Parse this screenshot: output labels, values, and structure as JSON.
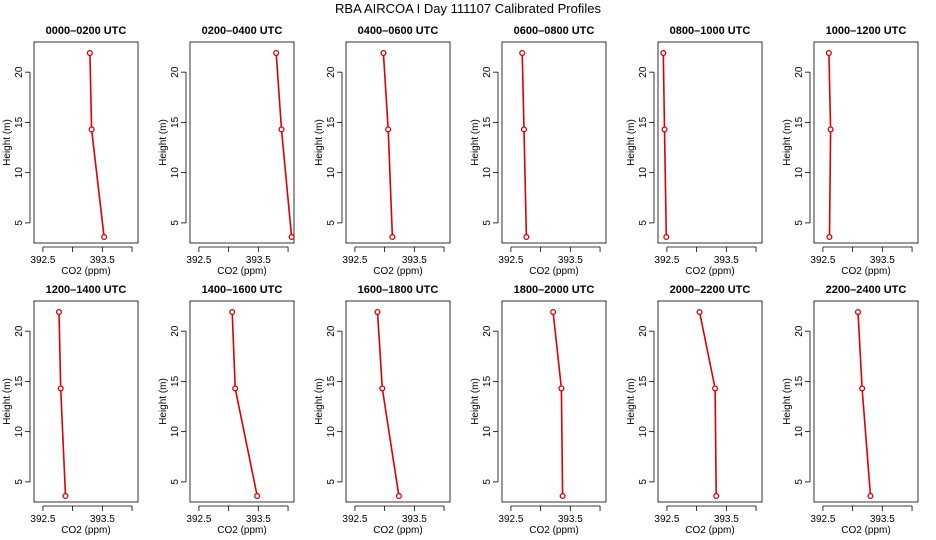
{
  "title": "RBA AIRCOA I  Day 111107  Calibrated Profiles",
  "colors": {
    "series": "#dd0000",
    "axis": "#000000"
  },
  "chart_data": {
    "type": "line",
    "xlabel": "CO2 (ppm)",
    "ylabel": "Height (m)",
    "xlim": [
      392.35,
      394.1
    ],
    "ylim": [
      3,
      23
    ],
    "x_ticks": [
      392.5,
      393.5
    ],
    "y_ticks": [
      5,
      10,
      15,
      20
    ],
    "heights": [
      21.9,
      14.3,
      3.6
    ],
    "panels": [
      {
        "title": "0000–0200 UTC",
        "x": [
          393.29,
          393.32,
          393.53
        ]
      },
      {
        "title": "0200–0400 UTC",
        "x": [
          393.8,
          393.89,
          394.06
        ]
      },
      {
        "title": "0400–0600 UTC",
        "x": [
          392.98,
          393.06,
          393.13
        ]
      },
      {
        "title": "0600–0800 UTC",
        "x": [
          392.69,
          392.72,
          392.76
        ]
      },
      {
        "title": "0800–1000 UTC",
        "x": [
          392.44,
          392.46,
          392.49
        ]
      },
      {
        "title": "1000–1200 UTC",
        "x": [
          392.6,
          392.63,
          392.61
        ]
      },
      {
        "title": "1200–1400 UTC",
        "x": [
          392.77,
          392.8,
          392.88
        ]
      },
      {
        "title": "1400–1600 UTC",
        "x": [
          393.06,
          393.11,
          393.48
        ]
      },
      {
        "title": "1600–1800 UTC",
        "x": [
          392.88,
          392.96,
          393.24
        ]
      },
      {
        "title": "1800–2000 UTC",
        "x": [
          393.21,
          393.35,
          393.37
        ]
      },
      {
        "title": "2000–2200 UTC",
        "x": [
          393.05,
          393.31,
          393.33
        ]
      },
      {
        "title": "2200–2400 UTC",
        "x": [
          393.09,
          393.16,
          393.3
        ]
      }
    ]
  }
}
